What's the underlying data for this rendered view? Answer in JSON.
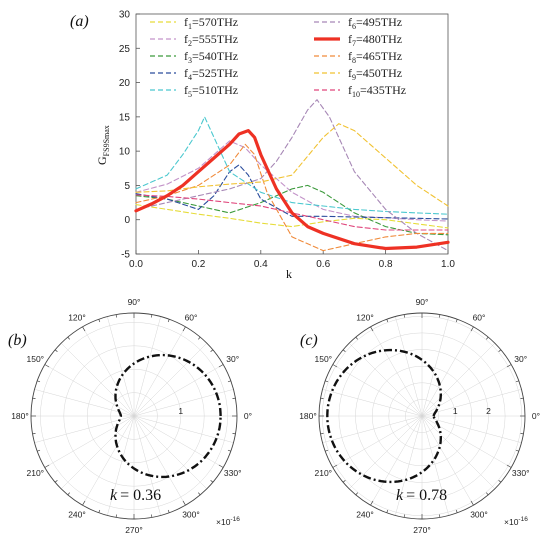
{
  "chart_data": [
    {
      "type": "line",
      "panel_label": "(a)",
      "ylabel_main": "G",
      "ylabel_sub": "FS9Smax",
      "xlabel": "k",
      "xlim": [
        0.0,
        1.0
      ],
      "ylim": [
        -5,
        30
      ],
      "xticks": [
        0.0,
        0.2,
        0.4,
        0.6,
        0.8,
        1.0
      ],
      "xtick_labels": [
        "0.0",
        "0.2",
        "0.4",
        "0.6",
        "0.8",
        "1.0"
      ],
      "yticks": [
        -5,
        0,
        5,
        10,
        15,
        20,
        25,
        30
      ],
      "ytick_labels": [
        "-5",
        "0",
        "5",
        "10",
        "15",
        "20",
        "25",
        "30"
      ],
      "legend_position": "top",
      "series": [
        {
          "name_base": "f",
          "name_sub": "1",
          "name_rest": "=570THz",
          "color": "#e6dc3a",
          "dashed": true,
          "x": [
            0.0,
            0.1,
            0.2,
            0.3,
            0.4,
            0.5,
            0.6,
            0.7,
            0.8,
            0.9,
            1.0
          ],
          "y": [
            2.2,
            1.5,
            0.8,
            0.2,
            -0.5,
            -1.0,
            -0.3,
            0.2,
            0.0,
            -0.6,
            -1.2
          ]
        },
        {
          "name_base": "f",
          "name_sub": "2",
          "name_rest": "=555THz",
          "color": "#c393c9",
          "dashed": true,
          "x": [
            0.0,
            0.1,
            0.2,
            0.25,
            0.3,
            0.35,
            0.4,
            0.5,
            0.6,
            0.7,
            0.8,
            0.9,
            1.0
          ],
          "y": [
            4.0,
            5.2,
            7.5,
            9.5,
            11.5,
            10.5,
            8.0,
            4.0,
            1.5,
            0.5,
            0.3,
            0.0,
            -0.2
          ]
        },
        {
          "name_base": "f",
          "name_sub": "3",
          "name_rest": "=540THz",
          "color": "#3c9a3c",
          "dashed": true,
          "x": [
            0.0,
            0.1,
            0.2,
            0.3,
            0.4,
            0.5,
            0.55,
            0.6,
            0.7,
            0.8,
            0.9,
            1.0
          ],
          "y": [
            3.5,
            3.0,
            2.0,
            1.0,
            2.5,
            4.5,
            5.0,
            4.0,
            1.0,
            -1.0,
            -2.0,
            -2.2
          ]
        },
        {
          "name_base": "f",
          "name_sub": "4",
          "name_rest": "=525THz",
          "color": "#2a4c9c",
          "dashed": true,
          "x": [
            0.0,
            0.1,
            0.2,
            0.25,
            0.3,
            0.33,
            0.36,
            0.4,
            0.5,
            0.6,
            0.7,
            0.8,
            0.9,
            1.0
          ],
          "y": [
            3.8,
            3.0,
            1.5,
            3.5,
            7.0,
            8.0,
            6.5,
            3.0,
            0.5,
            0.5,
            0.4,
            0.3,
            0.2,
            0.1
          ]
        },
        {
          "name_base": "f",
          "name_sub": "5",
          "name_rest": "=510THz",
          "color": "#4bc8cf",
          "dashed": true,
          "x": [
            0.0,
            0.1,
            0.15,
            0.2,
            0.22,
            0.25,
            0.3,
            0.4,
            0.5,
            0.6,
            0.7,
            0.8,
            0.9,
            1.0
          ],
          "y": [
            4.5,
            6.5,
            9.5,
            13.0,
            15.0,
            12.0,
            7.0,
            4.0,
            2.5,
            2.0,
            1.5,
            1.2,
            1.0,
            0.8
          ]
        },
        {
          "name_base": "f",
          "name_sub": "6",
          "name_rest": "=495THz",
          "color": "#a788b6",
          "dashed": true,
          "x": [
            0.0,
            0.1,
            0.2,
            0.3,
            0.4,
            0.45,
            0.5,
            0.55,
            0.58,
            0.62,
            0.7,
            0.8,
            0.9,
            1.0
          ],
          "y": [
            1.5,
            2.5,
            3.5,
            4.5,
            6.0,
            8.5,
            12.0,
            16.0,
            17.5,
            15.0,
            7.0,
            1.5,
            -2.0,
            -4.5
          ]
        },
        {
          "name_base": "f",
          "name_sub": "7",
          "name_rest": "=480THz",
          "color": "#ee3124",
          "dashed": false,
          "x": [
            0.0,
            0.05,
            0.1,
            0.15,
            0.2,
            0.25,
            0.3,
            0.33,
            0.36,
            0.38,
            0.4,
            0.45,
            0.5,
            0.55,
            0.6,
            0.7,
            0.8,
            0.9,
            1.0
          ],
          "y": [
            1.3,
            2.3,
            3.5,
            5.0,
            7.0,
            9.0,
            11.0,
            12.5,
            13.0,
            12.0,
            9.5,
            4.5,
            1.0,
            -1.0,
            -2.0,
            -3.5,
            -4.2,
            -4.0,
            -3.3
          ]
        },
        {
          "name_base": "f",
          "name_sub": "8",
          "name_rest": "=465THz",
          "color": "#f08a3a",
          "dashed": true,
          "x": [
            0.0,
            0.1,
            0.2,
            0.3,
            0.35,
            0.38,
            0.42,
            0.5,
            0.6,
            0.7,
            0.8,
            0.9,
            1.0
          ],
          "y": [
            2.5,
            3.5,
            5.0,
            8.0,
            11.0,
            9.5,
            4.0,
            -2.5,
            -4.5,
            -3.5,
            -2.5,
            -2.0,
            -2.0
          ]
        },
        {
          "name_base": "f",
          "name_sub": "9",
          "name_rest": "=450THz",
          "color": "#f1c232",
          "dashed": true,
          "x": [
            0.0,
            0.1,
            0.2,
            0.3,
            0.4,
            0.5,
            0.6,
            0.65,
            0.7,
            0.8,
            0.9,
            1.0
          ],
          "y": [
            4.0,
            4.2,
            4.8,
            5.2,
            5.5,
            6.5,
            12.0,
            14.0,
            13.0,
            9.0,
            5.0,
            2.0
          ]
        },
        {
          "name_base": "f",
          "name_sub": "10",
          "name_rest": "=435THz",
          "color": "#e0467c",
          "dashed": true,
          "x": [
            0.0,
            0.1,
            0.2,
            0.3,
            0.4,
            0.5,
            0.6,
            0.7,
            0.8,
            0.9,
            1.0
          ],
          "y": [
            3.6,
            3.4,
            3.0,
            2.5,
            2.0,
            1.0,
            0.0,
            -1.0,
            -1.5,
            -1.5,
            -1.5
          ]
        }
      ]
    },
    {
      "type": "polar",
      "panel_label": "(b)",
      "k_label": "k",
      "k_value": "= 0.36",
      "angle_labels": [
        "0°",
        "30°",
        "60°",
        "90°",
        "120°",
        "150°",
        "180°",
        "210°",
        "240°",
        "270°",
        "300°",
        "330°"
      ],
      "radial_ticks": [
        1
      ],
      "radial_tick_labels": [
        "1"
      ],
      "rmax": 2.2,
      "scale_label": "×10",
      "scale_exp": "-16",
      "curve": {
        "type": "lobe",
        "center": 0,
        "r0": 0.28,
        "r1": 1.85
      }
    },
    {
      "type": "polar",
      "panel_label": "(c)",
      "k_label": "k",
      "k_value": "= 0.78",
      "angle_labels": [
        "0°",
        "30°",
        "60°",
        "90°",
        "120°",
        "150°",
        "180°",
        "210°",
        "240°",
        "270°",
        "300°",
        "330°"
      ],
      "radial_ticks": [
        1,
        2
      ],
      "radial_tick_labels": [
        "1",
        "2"
      ],
      "rmax": 3.1,
      "scale_label": "×10",
      "scale_exp": "-16",
      "curve": {
        "type": "lobe",
        "center": 180,
        "r0": 0.35,
        "r1": 2.85
      }
    }
  ]
}
